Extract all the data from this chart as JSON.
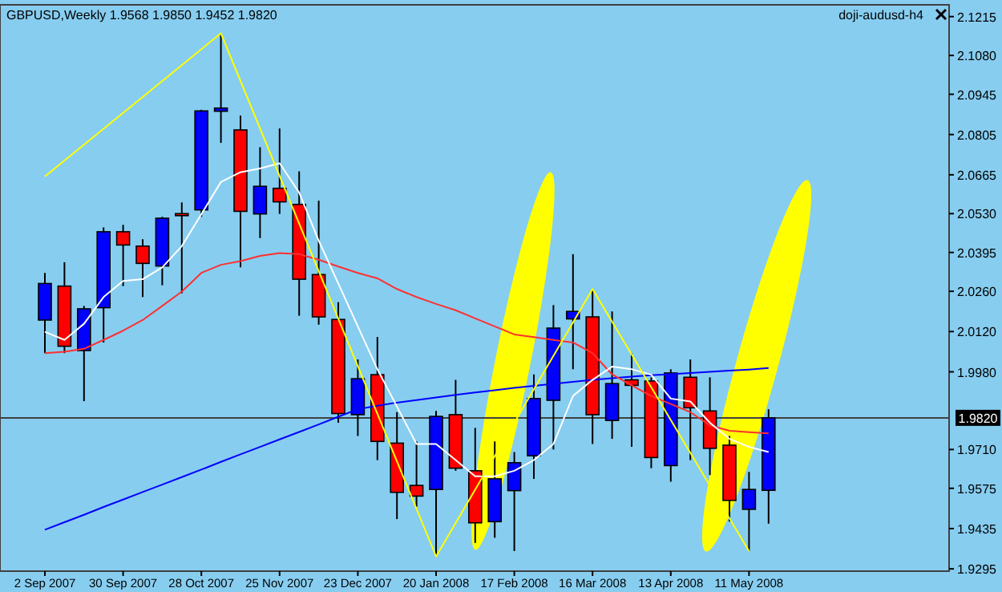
{
  "chart_data": {
    "type": "candlestick",
    "title": "GBPUSD,Weekly  1.9568 1.9850 1.9452 1.9820",
    "annotations": [
      "doji-audusd-h4"
    ],
    "categories": [
      "2 Sep 2007",
      null,
      null,
      null,
      "30 Sep 2007",
      null,
      null,
      null,
      "28 Oct 2007",
      null,
      null,
      null,
      "25 Nov 2007",
      null,
      null,
      null,
      "23 Dec 2007",
      null,
      null,
      null,
      "20 Jan 2008",
      null,
      null,
      null,
      "17 Feb 2008",
      null,
      null,
      null,
      "16 Mar 2008",
      null,
      null,
      null,
      "13 Apr 2008",
      null,
      null,
      null,
      "11 May 2008",
      null
    ],
    "ohlc": [
      [
        2.016,
        2.0324,
        2.0045,
        2.0287
      ],
      [
        2.0278,
        2.0361,
        2.0045,
        2.0069
      ],
      [
        2.0054,
        2.0209,
        1.9878,
        2.0199
      ],
      [
        2.0203,
        2.0482,
        2.0082,
        2.0467
      ],
      [
        2.0467,
        2.0491,
        2.0278,
        2.0421
      ],
      [
        2.0417,
        2.0441,
        2.024,
        2.0357
      ],
      [
        2.0348,
        2.0519,
        2.0281,
        2.0514
      ],
      [
        2.053,
        2.0569,
        2.0253,
        2.0523
      ],
      [
        2.0543,
        2.0891,
        2.0519,
        2.0887
      ],
      [
        2.0886,
        2.1157,
        2.0776,
        2.0897
      ],
      [
        2.0821,
        2.0871,
        2.0343,
        2.0538
      ],
      [
        2.0529,
        2.0761,
        2.0445,
        2.0625
      ],
      [
        2.0618,
        2.0826,
        2.0529,
        2.0571
      ],
      [
        2.0562,
        2.0677,
        2.0175,
        2.0302
      ],
      [
        2.0318,
        2.0575,
        2.0144,
        2.0171
      ],
      [
        2.0162,
        2.0222,
        1.9803,
        1.9835
      ],
      [
        1.9831,
        2.0023,
        1.9757,
        1.9956
      ],
      [
        1.997,
        2.0101,
        1.9673,
        1.9738
      ],
      [
        1.9732,
        1.984,
        1.9468,
        1.9561
      ],
      [
        1.9585,
        1.9738,
        1.9511,
        1.9548
      ],
      [
        1.9571,
        1.9844,
        1.9338,
        1.9825
      ],
      [
        1.9831,
        1.9952,
        1.9636,
        1.9645
      ],
      [
        1.9636,
        1.9785,
        1.9385,
        1.9455
      ],
      [
        1.9459,
        1.9738,
        1.9403,
        1.9608
      ],
      [
        1.9567,
        1.9701,
        1.9357,
        1.9664
      ],
      [
        1.9688,
        1.9971,
        1.9608,
        1.9887
      ],
      [
        1.9881,
        2.0212,
        1.971,
        2.0132
      ],
      [
        2.0164,
        2.0389,
        1.9989,
        2.019
      ],
      [
        2.0171,
        2.0268,
        1.9729,
        1.9831
      ],
      [
        1.9811,
        2.019,
        1.9747,
        1.9939
      ],
      [
        1.9952,
        2.0045,
        1.9719,
        1.9933
      ],
      [
        1.9948,
        1.9961,
        1.9645,
        1.9682
      ],
      [
        1.9654,
        1.9989,
        1.9598,
        1.9976
      ],
      [
        1.9961,
        2.0023,
        1.9673,
        1.9855
      ],
      [
        1.9844,
        1.9961,
        1.9621,
        1.9714
      ],
      [
        1.9725,
        1.9757,
        1.9459,
        1.9533
      ],
      [
        1.9502,
        1.9632,
        1.9357,
        1.9571
      ],
      [
        1.9568,
        1.985,
        1.9452,
        1.982
      ]
    ],
    "colors": [
      "#0000ff",
      "#ff0000",
      "#0000ff",
      "#0000ff",
      "#ff0000",
      "#ff0000",
      "#0000ff",
      "#ff0000",
      "#0000ff",
      "#0000ff",
      "#ff0000",
      "#0000ff",
      "#ff0000",
      "#ff0000",
      "#ff0000",
      "#ff0000",
      "#0000ff",
      "#ff0000",
      "#ff0000",
      "#ff0000",
      "#0000ff",
      "#ff0000",
      "#ff0000",
      "#0000ff",
      "#0000ff",
      "#0000ff",
      "#0000ff",
      "#0000ff",
      "#ff0000",
      "#0000ff",
      "#ff0000",
      "#ff0000",
      "#0000ff",
      "#ff0000",
      "#ff0000",
      "#ff0000",
      "#0000ff",
      "#0000ff"
    ],
    "series": [
      {
        "type": "line",
        "color": "#0000ff",
        "values": [
          1.9431,
          1.9457,
          1.9483,
          1.951,
          1.9536,
          1.9562,
          1.9588,
          1.9614,
          1.964,
          1.9667,
          1.9693,
          1.9719,
          1.9745,
          1.9771,
          1.9797,
          1.9824,
          1.985,
          1.9862,
          1.9873,
          1.9882,
          1.9891,
          1.99,
          1.9908,
          1.9916,
          1.9924,
          1.9931,
          1.9938,
          1.9945,
          1.9952,
          1.9958,
          1.9963,
          1.9968,
          1.9972,
          1.9976,
          1.998,
          1.9984,
          1.9988,
          1.9993
        ]
      },
      {
        "type": "line",
        "color": "#ff3030",
        "values": [
          2.0045,
          2.005,
          2.006,
          2.0091,
          2.0123,
          2.016,
          2.0209,
          2.0259,
          2.0324,
          2.0352,
          2.0365,
          2.0383,
          2.0393,
          2.0389,
          2.037,
          2.0346,
          2.0324,
          2.0305,
          2.0268,
          2.024,
          2.0216,
          2.0194,
          2.0166,
          2.0138,
          2.011,
          2.0101,
          2.0091,
          2.0082,
          2.0045,
          1.9971,
          1.9933,
          1.9896,
          1.9868,
          1.984,
          1.9794,
          1.9775,
          1.977,
          1.9766
        ]
      },
      {
        "type": "line",
        "color": "#ffffff",
        "values": [
          2.0119,
          2.0091,
          2.0147,
          2.024,
          2.0296,
          2.0302,
          2.0343,
          2.0417,
          2.0528,
          2.064,
          2.0674,
          2.0687,
          2.0705,
          2.0603,
          2.0436,
          2.0287,
          2.0138,
          1.9989,
          1.9859,
          1.9729,
          1.9729,
          1.9673,
          1.9617,
          1.9617,
          1.9636,
          1.9673,
          1.9729,
          1.9896,
          1.9952,
          1.9998,
          1.9989,
          1.997,
          1.9887,
          1.9877,
          1.9803,
          1.9747,
          1.9719,
          1.9701
        ]
      },
      {
        "type": "line",
        "color": "#ffff00",
        "values": [
          2.0659,
          null,
          null,
          null,
          null,
          null,
          null,
          null,
          null,
          2.1157,
          null,
          null,
          null,
          null,
          null,
          null,
          null,
          null,
          null,
          null,
          1.9338,
          null,
          null,
          null,
          null,
          null,
          null,
          null,
          2.0268,
          null,
          null,
          null,
          null,
          null,
          null,
          null,
          1.9357,
          null
        ]
      }
    ],
    "ylim": [
      1.9287,
      2.1256
    ],
    "yticks": [
      2.1215,
      {
        "value": 2.108,
        "label": "2.1080"
      },
      2.0945,
      2.0805,
      2.0665,
      {
        "value": 2.053,
        "label": "2.0530"
      },
      2.0395,
      {
        "value": 2.026,
        "label": "2.0260"
      },
      {
        "value": 2.012,
        "label": "2.0120"
      },
      {
        "value": 1.998,
        "label": "1.9980"
      },
      {
        "value": 1.971,
        "label": "1.9710"
      },
      1.9575,
      1.9435,
      1.9295
    ],
    "ref_lines": [
      {
        "axis": "y",
        "value": 1.982,
        "label": "1.9820",
        "color": "#404040"
      }
    ],
    "grid": false
  }
}
